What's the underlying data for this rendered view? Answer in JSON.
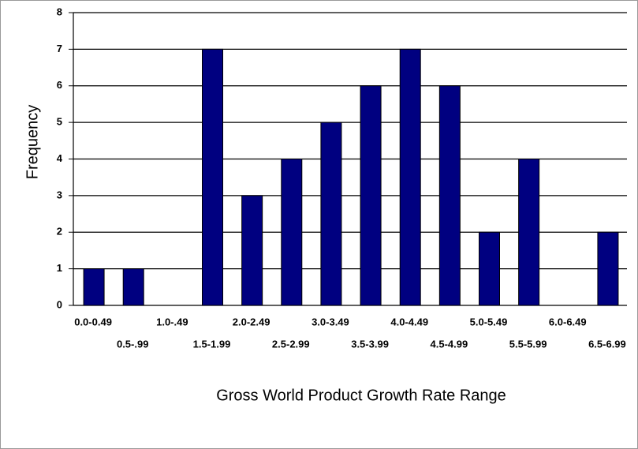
{
  "chart_data": {
    "type": "bar",
    "x_label": "Gross World Product Growth Rate Range",
    "y_label": "Frequency",
    "categories": [
      "0.0-0.49",
      "0.5-.99",
      "1.0-.49",
      "1.5-1.99",
      "2.0-2.49",
      "2.5-2.99",
      "3.0-3.49",
      "3.5-3.99",
      "4.0-4.49",
      "4.5-4.99",
      "5.0-5.49",
      "5.5-5.99",
      "6.0-6.49",
      "6.5-6.99"
    ],
    "values": [
      1,
      1,
      0,
      7,
      3,
      4,
      5,
      6,
      7,
      6,
      2,
      4,
      0,
      2
    ],
    "color": "#000080",
    "ylim": [
      0,
      8
    ],
    "yticks": [
      0,
      1,
      2,
      3,
      4,
      5,
      6,
      7,
      8
    ],
    "grid": true
  }
}
